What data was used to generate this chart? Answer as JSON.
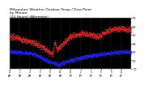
{
  "title_line1": "Milwaukee Weather Outdoor Temp / Dew Point",
  "title_line2": "by Minute",
  "title_line3": "(24 Hours) (Alternate)",
  "title_fontsize": 3.2,
  "bg_color": "#ffffff",
  "plot_bg_color": "#000000",
  "grid_color": "#555555",
  "temp_color": "#ff2222",
  "dew_color": "#2222ff",
  "ylim": [
    10,
    70
  ],
  "yticks": [
    10,
    20,
    30,
    40,
    50,
    60,
    70
  ],
  "ytick_labels": [
    "10",
    "20",
    "30",
    "40",
    "50",
    "60",
    "70"
  ],
  "ytick_fontsize": 2.5,
  "xtick_fontsize": 1.8,
  "num_points": 1440,
  "marker_size": 0.3,
  "temp_data": [],
  "dew_data": []
}
